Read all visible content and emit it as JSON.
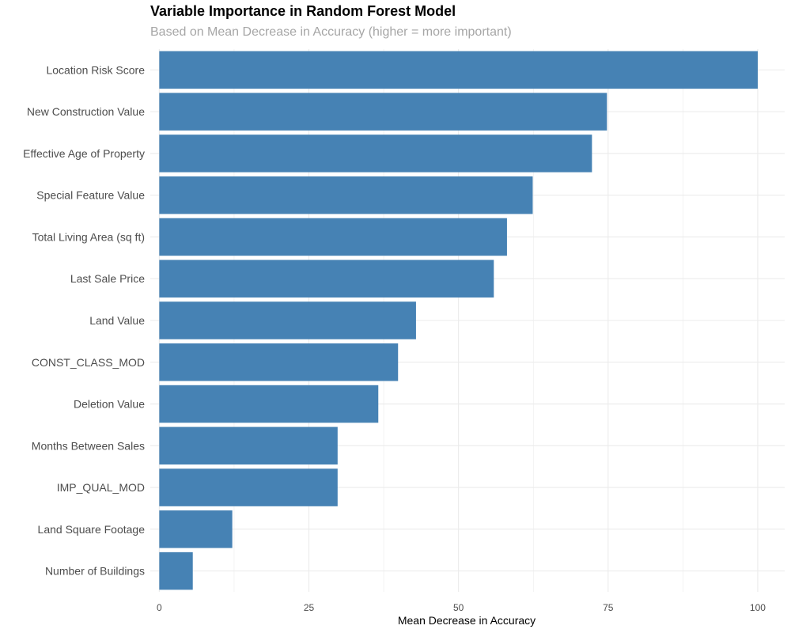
{
  "chart_data": {
    "type": "bar",
    "orientation": "horizontal",
    "title": "Variable Importance in Random Forest Model",
    "subtitle": "Based on Mean Decrease in Accuracy (higher = more important)",
    "xlabel": "Mean Decrease in Accuracy",
    "ylabel": "",
    "categories": [
      "Location Risk Score",
      "New Construction Value",
      "Effective Age of Property",
      "Special Feature Value",
      "Total Living Area (sq ft)",
      "Last Sale Price",
      "Land Value",
      "CONST_CLASS_MOD",
      "Deletion Value",
      "Months Between Sales",
      "IMP_QUAL_MOD",
      "Land Square Footage",
      "Number of Buildings"
    ],
    "values": [
      100,
      74.8,
      72.3,
      62.4,
      58.1,
      55.9,
      42.9,
      39.9,
      36.6,
      29.8,
      29.8,
      12.2,
      5.6
    ],
    "xlim": [
      -1.5,
      104.5
    ],
    "xticks": [
      0,
      25,
      50,
      75,
      100
    ],
    "xtick_labels": [
      "0",
      "25",
      "50",
      "75",
      "100"
    ],
    "grid": true,
    "bar_color": "#4682b4",
    "grid_color": "#ebebeb",
    "legend": "none"
  }
}
